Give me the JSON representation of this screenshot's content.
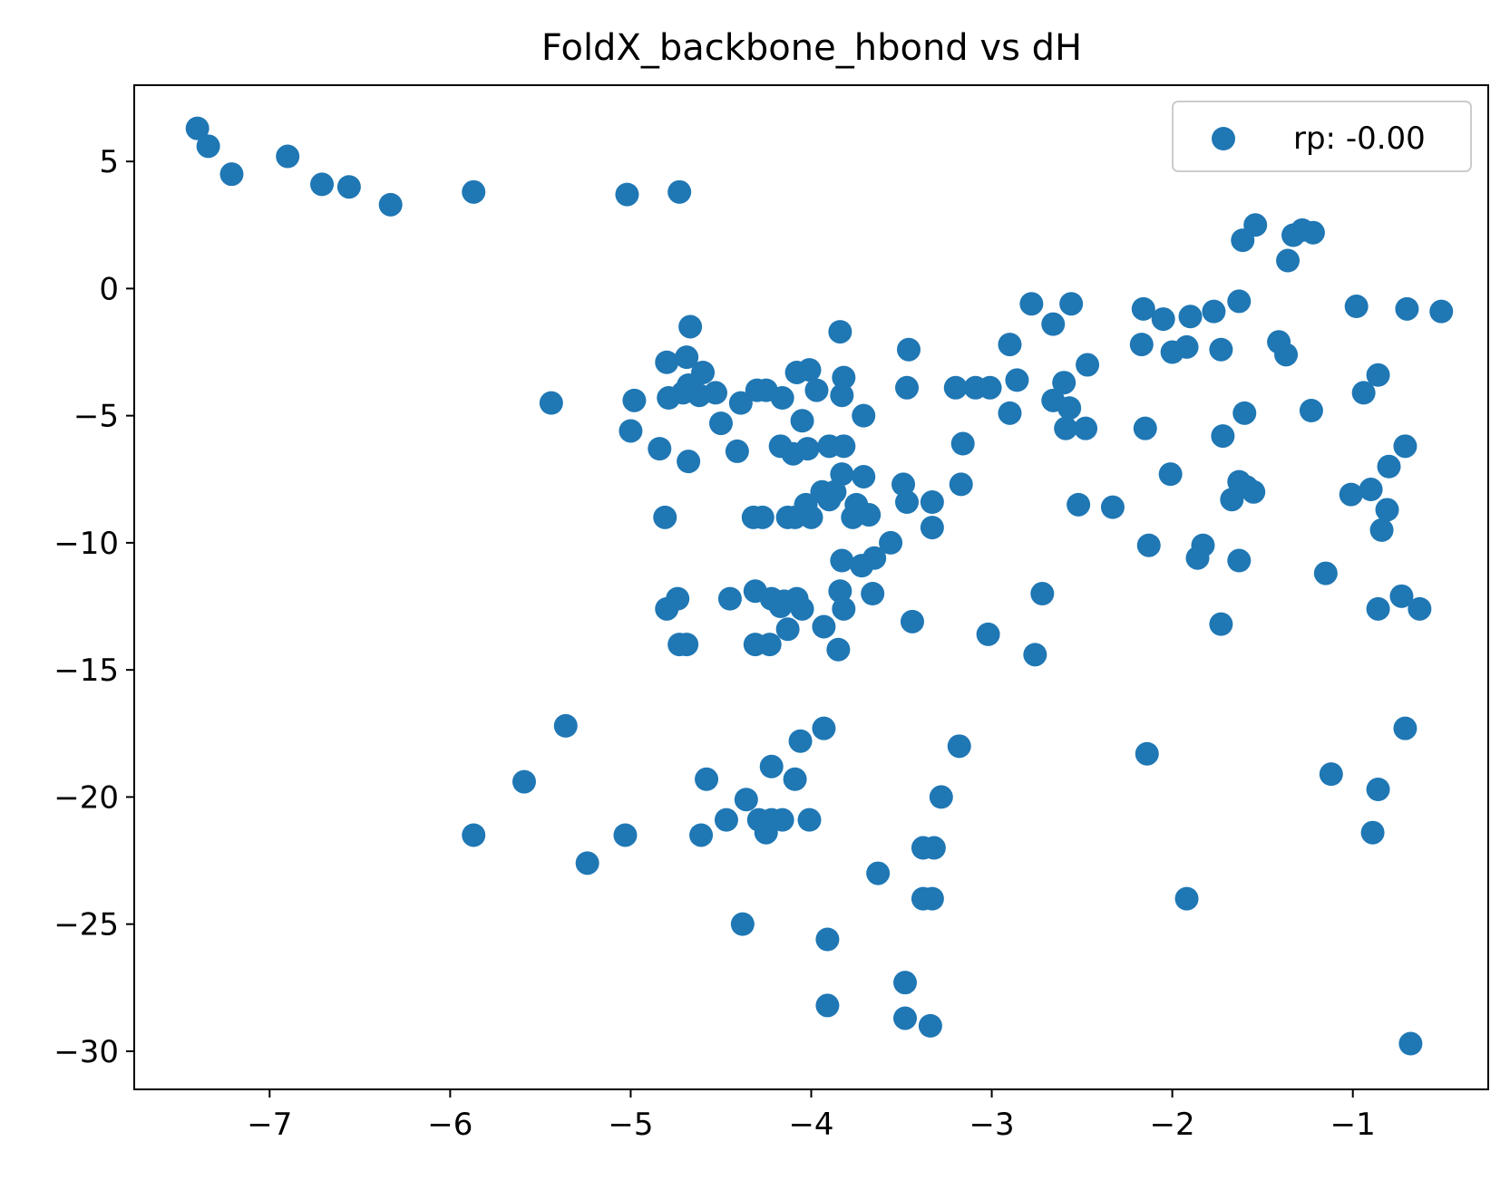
{
  "chart_data": {
    "type": "scatter",
    "title": "FoldX_backbone_hbond vs dH",
    "xlabel": "",
    "ylabel": "",
    "xlim": [
      -7.75,
      -0.25
    ],
    "ylim": [
      -31.5,
      8.0
    ],
    "xticks": [
      -7,
      -6,
      -5,
      -4,
      -3,
      -2,
      -1
    ],
    "xtick_labels": [
      "−7",
      "−6",
      "−5",
      "−4",
      "−3",
      "−2",
      "−1"
    ],
    "yticks": [
      5,
      0,
      -5,
      -10,
      -15,
      -20,
      -25,
      -30
    ],
    "ytick_labels": [
      "5",
      "0",
      "−5",
      "−10",
      "−15",
      "−20",
      "−25",
      "−30"
    ],
    "grid": false,
    "legend_position": "top-right",
    "color": "#1f77b4",
    "series": [
      {
        "name": "rp: -0.00",
        "points": [
          [
            -7.4,
            6.3
          ],
          [
            -7.34,
            5.6
          ],
          [
            -7.21,
            4.5
          ],
          [
            -6.9,
            5.2
          ],
          [
            -6.71,
            4.1
          ],
          [
            -6.56,
            4.0
          ],
          [
            -6.33,
            3.3
          ],
          [
            -5.87,
            3.8
          ],
          [
            -5.02,
            3.7
          ],
          [
            -4.73,
            3.8
          ],
          [
            -1.54,
            2.5
          ],
          [
            -1.61,
            1.9
          ],
          [
            -1.33,
            2.1
          ],
          [
            -1.28,
            2.3
          ],
          [
            -1.22,
            2.2
          ],
          [
            -1.36,
            1.1
          ],
          [
            -2.78,
            -0.6
          ],
          [
            -2.56,
            -0.6
          ],
          [
            -2.16,
            -0.8
          ],
          [
            -2.05,
            -1.2
          ],
          [
            -1.9,
            -1.1
          ],
          [
            -1.77,
            -0.9
          ],
          [
            -1.63,
            -0.5
          ],
          [
            -2.66,
            -1.4
          ],
          [
            -4.67,
            -1.5
          ],
          [
            -3.84,
            -1.7
          ],
          [
            -0.98,
            -0.7
          ],
          [
            -0.7,
            -0.8
          ],
          [
            -0.51,
            -0.9
          ],
          [
            -3.46,
            -2.4
          ],
          [
            -2.9,
            -2.2
          ],
          [
            -2.17,
            -2.2
          ],
          [
            -2.0,
            -2.5
          ],
          [
            -1.92,
            -2.3
          ],
          [
            -1.73,
            -2.4
          ],
          [
            -1.41,
            -2.1
          ],
          [
            -1.37,
            -2.6
          ],
          [
            -4.8,
            -2.9
          ],
          [
            -4.69,
            -2.7
          ],
          [
            -4.6,
            -3.3
          ],
          [
            -4.08,
            -3.3
          ],
          [
            -4.01,
            -3.2
          ],
          [
            -3.82,
            -3.5
          ],
          [
            -2.86,
            -3.6
          ],
          [
            -2.6,
            -3.7
          ],
          [
            -2.47,
            -3.0
          ],
          [
            -0.86,
            -3.4
          ],
          [
            -5.44,
            -4.5
          ],
          [
            -4.98,
            -4.4
          ],
          [
            -4.79,
            -4.3
          ],
          [
            -4.71,
            -4.1
          ],
          [
            -4.68,
            -3.8
          ],
          [
            -4.62,
            -4.2
          ],
          [
            -4.53,
            -4.1
          ],
          [
            -4.5,
            -5.3
          ],
          [
            -4.39,
            -4.5
          ],
          [
            -4.3,
            -4.0
          ],
          [
            -4.25,
            -4.0
          ],
          [
            -4.16,
            -4.3
          ],
          [
            -3.97,
            -4.0
          ],
          [
            -3.83,
            -4.2
          ],
          [
            -3.71,
            -5.0
          ],
          [
            -3.47,
            -3.9
          ],
          [
            -3.2,
            -3.9
          ],
          [
            -3.09,
            -3.9
          ],
          [
            -3.01,
            -3.9
          ],
          [
            -2.9,
            -4.9
          ],
          [
            -2.66,
            -4.4
          ],
          [
            -2.57,
            -4.7
          ],
          [
            -2.59,
            -5.5
          ],
          [
            -2.48,
            -5.5
          ],
          [
            -2.15,
            -5.5
          ],
          [
            -1.6,
            -4.9
          ],
          [
            -1.23,
            -4.8
          ],
          [
            -0.94,
            -4.1
          ],
          [
            -5.0,
            -5.6
          ],
          [
            -4.84,
            -6.3
          ],
          [
            -4.68,
            -6.8
          ],
          [
            -4.41,
            -6.4
          ],
          [
            -4.17,
            -6.2
          ],
          [
            -4.1,
            -6.5
          ],
          [
            -4.02,
            -6.3
          ],
          [
            -4.05,
            -5.2
          ],
          [
            -3.9,
            -6.2
          ],
          [
            -3.82,
            -6.2
          ],
          [
            -3.16,
            -6.1
          ],
          [
            -1.72,
            -5.8
          ],
          [
            -0.71,
            -6.2
          ],
          [
            -3.83,
            -7.3
          ],
          [
            -3.71,
            -7.4
          ],
          [
            -3.49,
            -7.7
          ],
          [
            -3.17,
            -7.7
          ],
          [
            -2.01,
            -7.3
          ],
          [
            -1.63,
            -7.6
          ],
          [
            -1.59,
            -7.8
          ],
          [
            -1.55,
            -8.0
          ],
          [
            -1.67,
            -8.3
          ],
          [
            -0.9,
            -7.9
          ],
          [
            -1.01,
            -8.1
          ],
          [
            -0.8,
            -7.0
          ],
          [
            -4.81,
            -9.0
          ],
          [
            -4.32,
            -9.0
          ],
          [
            -4.27,
            -9.0
          ],
          [
            -4.13,
            -9.0
          ],
          [
            -4.09,
            -9.0
          ],
          [
            -4.03,
            -8.5
          ],
          [
            -4.0,
            -9.0
          ],
          [
            -3.94,
            -8.0
          ],
          [
            -3.9,
            -8.3
          ],
          [
            -3.87,
            -8.0
          ],
          [
            -3.75,
            -8.5
          ],
          [
            -3.77,
            -9.0
          ],
          [
            -3.68,
            -8.9
          ],
          [
            -3.47,
            -8.4
          ],
          [
            -3.33,
            -8.4
          ],
          [
            -3.33,
            -9.4
          ],
          [
            -2.52,
            -8.5
          ],
          [
            -2.33,
            -8.6
          ],
          [
            -3.56,
            -10.0
          ],
          [
            -3.65,
            -10.6
          ],
          [
            -3.72,
            -10.9
          ],
          [
            -3.83,
            -10.7
          ],
          [
            -2.13,
            -10.1
          ],
          [
            -1.83,
            -10.1
          ],
          [
            -1.86,
            -10.6
          ],
          [
            -1.63,
            -10.7
          ],
          [
            -1.15,
            -11.2
          ],
          [
            -0.84,
            -9.5
          ],
          [
            -0.81,
            -8.7
          ],
          [
            -4.8,
            -12.6
          ],
          [
            -4.74,
            -12.2
          ],
          [
            -4.45,
            -12.2
          ],
          [
            -4.31,
            -11.9
          ],
          [
            -4.22,
            -12.2
          ],
          [
            -4.17,
            -12.5
          ],
          [
            -4.15,
            -12.3
          ],
          [
            -4.08,
            -12.2
          ],
          [
            -4.05,
            -12.6
          ],
          [
            -3.84,
            -11.9
          ],
          [
            -3.82,
            -12.6
          ],
          [
            -3.66,
            -12.0
          ],
          [
            -2.72,
            -12.0
          ],
          [
            -0.73,
            -12.1
          ],
          [
            -0.86,
            -12.6
          ],
          [
            -0.63,
            -12.6
          ],
          [
            -4.73,
            -14.0
          ],
          [
            -4.69,
            -14.0
          ],
          [
            -4.31,
            -14.0
          ],
          [
            -4.23,
            -14.0
          ],
          [
            -4.13,
            -13.4
          ],
          [
            -3.93,
            -13.3
          ],
          [
            -3.85,
            -14.2
          ],
          [
            -3.44,
            -13.1
          ],
          [
            -3.02,
            -13.6
          ],
          [
            -2.76,
            -14.4
          ],
          [
            -1.73,
            -13.2
          ],
          [
            -5.36,
            -17.2
          ],
          [
            -4.06,
            -17.8
          ],
          [
            -3.93,
            -17.3
          ],
          [
            -3.18,
            -18.0
          ],
          [
            -2.14,
            -18.3
          ],
          [
            -0.71,
            -17.3
          ],
          [
            -5.59,
            -19.4
          ],
          [
            -4.58,
            -19.3
          ],
          [
            -4.22,
            -18.8
          ],
          [
            -4.09,
            -19.3
          ],
          [
            -4.36,
            -20.1
          ],
          [
            -3.28,
            -20.0
          ],
          [
            -1.12,
            -19.1
          ],
          [
            -0.86,
            -19.7
          ],
          [
            -5.87,
            -21.5
          ],
          [
            -5.03,
            -21.5
          ],
          [
            -4.61,
            -21.5
          ],
          [
            -4.47,
            -20.9
          ],
          [
            -4.29,
            -20.9
          ],
          [
            -4.25,
            -21.4
          ],
          [
            -4.22,
            -20.9
          ],
          [
            -4.16,
            -20.9
          ],
          [
            -4.01,
            -20.9
          ],
          [
            -5.24,
            -22.6
          ],
          [
            -3.38,
            -22.0
          ],
          [
            -3.32,
            -22.0
          ],
          [
            -0.89,
            -21.4
          ],
          [
            -3.63,
            -23.0
          ],
          [
            -3.38,
            -24.0
          ],
          [
            -3.33,
            -24.0
          ],
          [
            -1.92,
            -24.0
          ],
          [
            -4.38,
            -25.0
          ],
          [
            -3.91,
            -25.6
          ],
          [
            -3.91,
            -28.2
          ],
          [
            -3.48,
            -27.3
          ],
          [
            -3.48,
            -28.7
          ],
          [
            -3.34,
            -29.0
          ],
          [
            -0.68,
            -29.7
          ]
        ]
      }
    ]
  }
}
